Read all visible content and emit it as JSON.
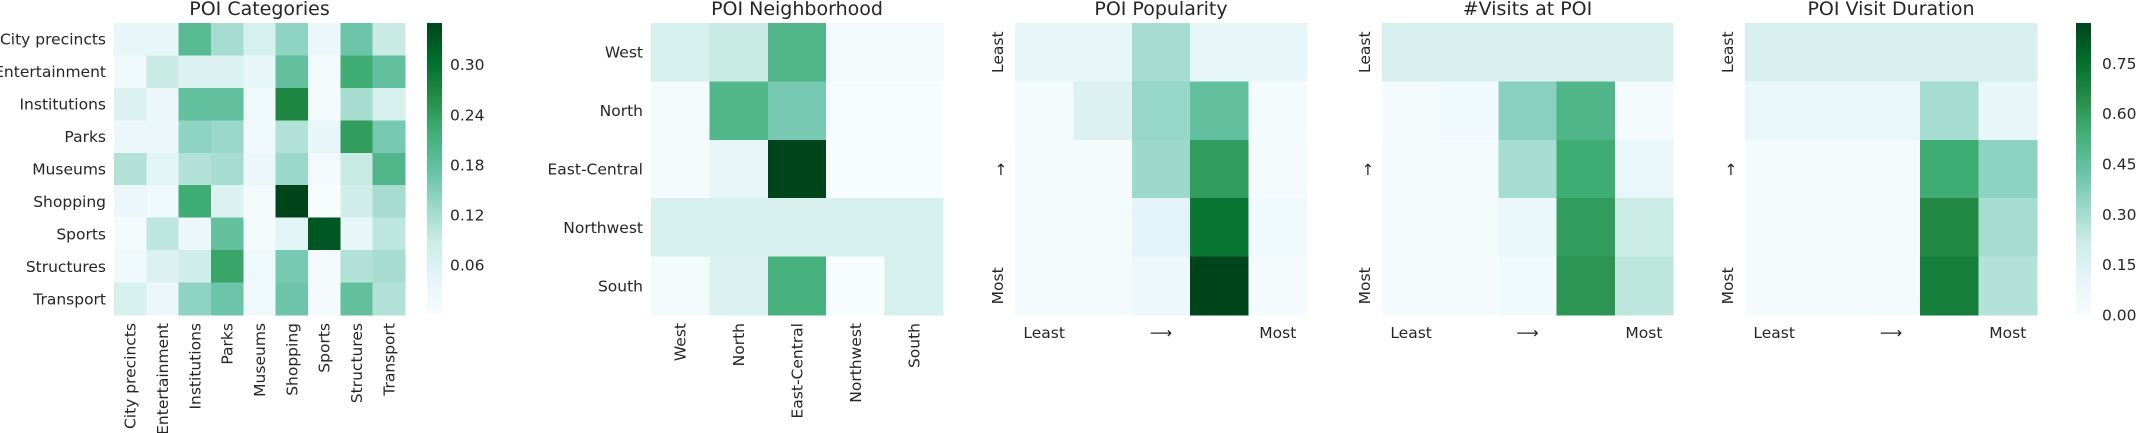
{
  "colormap": [
    "#f7fcfd",
    "#e5f5f9",
    "#ccece6",
    "#99d8c9",
    "#66c2a4",
    "#41ae76",
    "#238b45",
    "#006d2c",
    "#00441b"
  ],
  "panels": [
    {
      "id": "categories",
      "title": "POI Categories",
      "rows": [
        "City precincts",
        "Entertainment",
        "Institutions",
        "Parks",
        "Museums",
        "Shopping",
        "Sports",
        "Structures",
        "Transport"
      ],
      "cols": [
        "City precincts",
        "Entertainment",
        "Institutions",
        "Parks",
        "Museums",
        "Shopping",
        "Sports",
        "Structures",
        "Transport"
      ],
      "x_axis_label": "",
      "y_axis_label": ""
    },
    {
      "id": "neighborhood",
      "title": "POI Neighborhood",
      "rows": [
        "West",
        "North",
        "East-Central",
        "Northwest",
        "South"
      ],
      "cols": [
        "West",
        "North",
        "East-Central",
        "Northwest",
        "South"
      ],
      "x_axis_label": "",
      "y_axis_label": ""
    },
    {
      "id": "popularity",
      "title": "POI Popularity",
      "rows": [],
      "cols": [],
      "x_axis_label": [
        "Least",
        "⟶",
        "Most"
      ],
      "y_axis_label": [
        "Least",
        "↑",
        "Most"
      ]
    },
    {
      "id": "visits",
      "title": "#Visits at POI",
      "rows": [],
      "cols": [],
      "x_axis_label": [
        "Least",
        "⟶",
        "Most"
      ],
      "y_axis_label": [
        "Least",
        "↑",
        "Most"
      ]
    },
    {
      "id": "duration",
      "title": "POI Visit Duration",
      "rows": [],
      "cols": [],
      "x_axis_label": [
        "Least",
        "⟶",
        "Most"
      ],
      "y_axis_label": [
        "Least",
        "↑",
        "Most"
      ]
    }
  ],
  "colorbars": [
    {
      "id": "cb-left",
      "min": 0.0,
      "max": 0.35,
      "ticks": [
        "0.06",
        "0.12",
        "0.18",
        "0.24",
        "0.30"
      ],
      "tick_values": [
        0.06,
        0.12,
        0.18,
        0.24,
        0.3
      ]
    },
    {
      "id": "cb-right",
      "min": 0.0,
      "max": 0.87,
      "ticks": [
        "0.00",
        "0.15",
        "0.30",
        "0.45",
        "0.60",
        "0.75"
      ],
      "tick_values": [
        0.0,
        0.15,
        0.3,
        0.45,
        0.6,
        0.75
      ]
    }
  ],
  "chart_data": [
    {
      "type": "heatmap",
      "title": "POI Categories",
      "x_labels": [
        "City precincts",
        "Entertainment",
        "Institutions",
        "Parks",
        "Museums",
        "Shopping",
        "Sports",
        "Structures",
        "Transport"
      ],
      "y_labels": [
        "City precincts",
        "Entertainment",
        "Institutions",
        "Parks",
        "Museums",
        "Shopping",
        "Sports",
        "Structures",
        "Transport"
      ],
      "vmin": 0.0,
      "vmax": 0.35,
      "values": [
        [
          0.04,
          0.04,
          0.19,
          0.12,
          0.07,
          0.14,
          0.03,
          0.17,
          0.09
        ],
        [
          0.02,
          0.09,
          0.06,
          0.06,
          0.04,
          0.18,
          0.01,
          0.22,
          0.18
        ],
        [
          0.06,
          0.03,
          0.18,
          0.18,
          0.02,
          0.27,
          0.01,
          0.12,
          0.07
        ],
        [
          0.03,
          0.03,
          0.14,
          0.13,
          0.02,
          0.11,
          0.04,
          0.24,
          0.16
        ],
        [
          0.11,
          0.05,
          0.11,
          0.12,
          0.03,
          0.13,
          0.01,
          0.09,
          0.2
        ],
        [
          0.03,
          0.02,
          0.22,
          0.06,
          0.01,
          0.36,
          0.0,
          0.08,
          0.12
        ],
        [
          0.01,
          0.1,
          0.03,
          0.18,
          0.01,
          0.05,
          0.33,
          0.04,
          0.1
        ],
        [
          0.02,
          0.06,
          0.08,
          0.23,
          0.02,
          0.16,
          0.01,
          0.11,
          0.12
        ],
        [
          0.07,
          0.03,
          0.14,
          0.17,
          0.02,
          0.17,
          0.01,
          0.18,
          0.11
        ]
      ]
    },
    {
      "type": "heatmap",
      "title": "POI Neighborhood",
      "x_labels": [
        "West",
        "North",
        "East-Central",
        "Northwest",
        "South"
      ],
      "y_labels": [
        "West",
        "North",
        "East-Central",
        "Northwest",
        "South"
      ],
      "vmin": 0.0,
      "vmax": 0.35,
      "values": [
        [
          0.07,
          0.09,
          0.2,
          0.01,
          0.01
        ],
        [
          0.01,
          0.2,
          0.16,
          0.0,
          0.0
        ],
        [
          0.01,
          0.04,
          0.35,
          0.0,
          0.0
        ],
        [
          0.07,
          0.07,
          0.07,
          0.07,
          0.07
        ],
        [
          0.01,
          0.06,
          0.21,
          0.0,
          0.07
        ]
      ]
    },
    {
      "type": "heatmap",
      "title": "POI Popularity",
      "x_labels": [],
      "y_labels": [],
      "vmin": 0.0,
      "vmax": 0.87,
      "values": [
        [
          0.1,
          0.1,
          0.3,
          0.1,
          0.1
        ],
        [
          0.02,
          0.15,
          0.33,
          0.45,
          0.02
        ],
        [
          0.01,
          0.02,
          0.32,
          0.6,
          0.01
        ],
        [
          0.01,
          0.02,
          0.12,
          0.73,
          0.04
        ],
        [
          0.01,
          0.01,
          0.06,
          0.87,
          0.01
        ]
      ]
    },
    {
      "type": "heatmap",
      "title": "#Visits at POI",
      "x_labels": [],
      "y_labels": [],
      "vmin": 0.0,
      "vmax": 0.87,
      "values": [
        [
          0.17,
          0.17,
          0.17,
          0.17,
          0.17
        ],
        [
          0.02,
          0.04,
          0.36,
          0.5,
          0.02
        ],
        [
          0.01,
          0.02,
          0.3,
          0.55,
          0.08
        ],
        [
          0.01,
          0.02,
          0.08,
          0.6,
          0.22
        ],
        [
          0.01,
          0.01,
          0.04,
          0.62,
          0.25
        ]
      ]
    },
    {
      "type": "heatmap",
      "title": "POI Visit Duration",
      "x_labels": [],
      "y_labels": [],
      "vmin": 0.0,
      "vmax": 0.87,
      "values": [
        [
          0.17,
          0.17,
          0.17,
          0.17,
          0.17
        ],
        [
          0.08,
          0.08,
          0.08,
          0.3,
          0.1
        ],
        [
          0.01,
          0.01,
          0.02,
          0.55,
          0.35
        ],
        [
          0.01,
          0.01,
          0.02,
          0.66,
          0.3
        ],
        [
          0.01,
          0.01,
          0.03,
          0.7,
          0.27
        ]
      ]
    }
  ]
}
